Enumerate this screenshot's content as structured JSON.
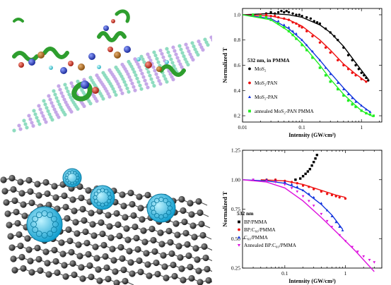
{
  "chart_data": [
    {
      "type": "scatter",
      "xscale": "log",
      "xlim": [
        0.01,
        2.2
      ],
      "ylim": [
        0.15,
        1.05
      ],
      "xticks": [
        "0.01",
        "0.1",
        "1"
      ],
      "yticks": [
        "0.2",
        "0.4",
        "0.6",
        "0.8",
        "1.0"
      ],
      "xlabel": "Intensity (GW/cm²)",
      "ylabel": "Normalized T",
      "annotation": "532 nm, in PMMA",
      "legend_position": "center-left",
      "series": [
        {
          "name": "MoS₂",
          "marker": "circle",
          "color": "#000000",
          "x": [
            0.015,
            0.02,
            0.025,
            0.03,
            0.035,
            0.04,
            0.045,
            0.05,
            0.055,
            0.06,
            0.07,
            0.08,
            0.09,
            0.1,
            0.12,
            0.14,
            0.16,
            0.18,
            0.2,
            0.25,
            0.3,
            0.35,
            0.4,
            0.5,
            0.6,
            0.7,
            0.8,
            0.9,
            1.0,
            1.1,
            1.2,
            1.3
          ],
          "y": [
            1.0,
            1.0,
            1.01,
            1.02,
            1.01,
            1.02,
            1.03,
            1.02,
            1.03,
            1.02,
            1.01,
            1.0,
            1.0,
            0.99,
            0.98,
            0.97,
            0.95,
            0.94,
            0.93,
            0.89,
            0.86,
            0.83,
            0.8,
            0.74,
            0.68,
            0.64,
            0.6,
            0.57,
            0.54,
            0.52,
            0.5,
            0.48
          ],
          "fit": {
            "x": [
              0.01,
              0.03,
              0.06,
              0.1,
              0.2,
              0.3,
              0.5,
              0.8,
              1.0,
              1.3
            ],
            "y": [
              1.0,
              1.01,
              1.0,
              0.98,
              0.92,
              0.86,
              0.75,
              0.62,
              0.56,
              0.49
            ]
          }
        },
        {
          "name": "MoS₂/PAN",
          "marker": "circle",
          "color": "#ee1111",
          "x": [
            0.015,
            0.02,
            0.025,
            0.03,
            0.035,
            0.04,
            0.05,
            0.06,
            0.07,
            0.08,
            0.09,
            0.1,
            0.12,
            0.15,
            0.2,
            0.25,
            0.3,
            0.4,
            0.5,
            0.6,
            0.7,
            0.8,
            1.0,
            1.2
          ],
          "y": [
            1.0,
            1.0,
            1.0,
            0.99,
            0.99,
            0.98,
            0.97,
            0.96,
            0.94,
            0.93,
            0.91,
            0.9,
            0.87,
            0.83,
            0.78,
            0.74,
            0.7,
            0.64,
            0.6,
            0.57,
            0.54,
            0.52,
            0.49,
            0.47
          ],
          "fit": {
            "x": [
              0.01,
              0.03,
              0.06,
              0.1,
              0.2,
              0.3,
              0.5,
              0.8,
              1.2
            ],
            "y": [
              1.0,
              0.99,
              0.96,
              0.91,
              0.8,
              0.72,
              0.61,
              0.53,
              0.47
            ]
          }
        },
        {
          "name": "MoS₂-PAN",
          "marker": "triangle",
          "color": "#1133dd",
          "x": [
            0.015,
            0.02,
            0.025,
            0.03,
            0.04,
            0.05,
            0.06,
            0.07,
            0.08,
            0.1,
            0.12,
            0.15,
            0.2,
            0.25,
            0.3,
            0.4,
            0.5,
            0.6,
            0.7,
            0.8,
            1.0,
            1.2,
            1.4
          ],
          "y": [
            1.0,
            0.99,
            0.98,
            0.97,
            0.95,
            0.92,
            0.9,
            0.87,
            0.85,
            0.8,
            0.76,
            0.71,
            0.64,
            0.58,
            0.53,
            0.46,
            0.41,
            0.37,
            0.34,
            0.31,
            0.28,
            0.25,
            0.23
          ],
          "fit": {
            "x": [
              0.01,
              0.03,
              0.06,
              0.1,
              0.2,
              0.3,
              0.5,
              0.8,
              1.0,
              1.4
            ],
            "y": [
              1.0,
              0.97,
              0.89,
              0.8,
              0.64,
              0.54,
              0.42,
              0.32,
              0.28,
              0.23
            ]
          }
        },
        {
          "name": "annealed MoS₂-PAN PMMA",
          "marker": "square",
          "color": "#22ee22",
          "x": [
            0.015,
            0.02,
            0.025,
            0.03,
            0.04,
            0.05,
            0.06,
            0.07,
            0.08,
            0.1,
            0.12,
            0.15,
            0.2,
            0.25,
            0.3,
            0.4,
            0.5,
            0.6,
            0.7,
            0.8,
            1.0,
            1.2,
            1.4,
            1.6
          ],
          "y": [
            1.0,
            0.99,
            0.98,
            0.96,
            0.93,
            0.9,
            0.87,
            0.84,
            0.81,
            0.76,
            0.72,
            0.66,
            0.58,
            0.52,
            0.47,
            0.41,
            0.36,
            0.32,
            0.29,
            0.27,
            0.24,
            0.22,
            0.21,
            0.2
          ],
          "fit": {
            "x": [
              0.01,
              0.03,
              0.06,
              0.1,
              0.2,
              0.3,
              0.5,
              0.8,
              1.0,
              1.6
            ],
            "y": [
              1.0,
              0.96,
              0.87,
              0.77,
              0.6,
              0.49,
              0.37,
              0.28,
              0.24,
              0.19
            ]
          }
        }
      ]
    },
    {
      "type": "scatter",
      "xscale": "log",
      "xlim": [
        0.02,
        4.0
      ],
      "ylim": [
        0.25,
        1.25
      ],
      "xticks": [
        "0.1",
        "1"
      ],
      "yticks": [
        "0.25",
        "0.50",
        "0.75",
        "1.00",
        "1.25"
      ],
      "xlabel": "Intensity (GW/cm²)",
      "ylabel": "Normalized T",
      "annotation": "532 nm",
      "legend_position": "bottom-left",
      "series": [
        {
          "name": "BP/PMMA",
          "marker": "square",
          "color": "#000000",
          "x": [
            0.15,
            0.18,
            0.2,
            0.22,
            0.24,
            0.26,
            0.28,
            0.3,
            0.32,
            0.34
          ],
          "y": [
            1.0,
            1.01,
            1.03,
            1.05,
            1.07,
            1.09,
            1.12,
            1.15,
            1.18,
            1.21
          ]
        },
        {
          "name": "BP:C₆₀/PMMA",
          "marker": "circle",
          "color": "#ee1111",
          "x": [
            0.05,
            0.07,
            0.1,
            0.13,
            0.16,
            0.2,
            0.25,
            0.3,
            0.4,
            0.5,
            0.6,
            0.7,
            0.8,
            1.0
          ],
          "y": [
            1.0,
            1.0,
            0.99,
            0.98,
            0.97,
            0.95,
            0.94,
            0.92,
            0.9,
            0.88,
            0.87,
            0.86,
            0.85,
            0.84
          ],
          "fit": {
            "x": [
              0.04,
              0.1,
              0.2,
              0.4,
              0.7,
              1.0
            ],
            "y": [
              1.0,
              0.99,
              0.96,
              0.91,
              0.87,
              0.85
            ]
          }
        },
        {
          "name": "C₆₀/PMMA",
          "marker": "triangle",
          "color": "#1133dd",
          "x": [
            0.03,
            0.05,
            0.07,
            0.1,
            0.13,
            0.16,
            0.2,
            0.25,
            0.3,
            0.4,
            0.5,
            0.6,
            0.7,
            0.8,
            0.9
          ],
          "y": [
            1.0,
            1.0,
            0.99,
            0.98,
            0.96,
            0.94,
            0.91,
            0.88,
            0.85,
            0.8,
            0.74,
            0.69,
            0.64,
            0.6,
            0.57
          ],
          "fit": {
            "x": [
              0.02,
              0.05,
              0.1,
              0.2,
              0.4,
              0.6,
              0.9
            ],
            "y": [
              1.0,
              0.99,
              0.97,
              0.91,
              0.79,
              0.7,
              0.58
            ]
          }
        },
        {
          "name": "Annealed BP:C₆₀/PMMA",
          "marker": "triangle-down",
          "color": "#dd11dd",
          "x": [
            0.03,
            0.05,
            0.07,
            0.1,
            0.13,
            0.16,
            0.2,
            0.25,
            0.3,
            0.4,
            0.5,
            0.6,
            0.8,
            1.0,
            1.3,
            1.6,
            2.0,
            2.5,
            3.0
          ],
          "y": [
            1.0,
            0.99,
            0.98,
            0.96,
            0.93,
            0.9,
            0.86,
            0.82,
            0.78,
            0.71,
            0.65,
            0.6,
            0.53,
            0.48,
            0.43,
            0.39,
            0.35,
            0.32,
            0.3
          ],
          "fit": {
            "x": [
              0.02,
              0.05,
              0.1,
              0.2,
              0.4,
              0.8,
              1.5,
              3.0
            ],
            "y": [
              1.0,
              0.98,
              0.93,
              0.82,
              0.68,
              0.53,
              0.39,
              0.22
            ]
          }
        }
      ]
    }
  ]
}
